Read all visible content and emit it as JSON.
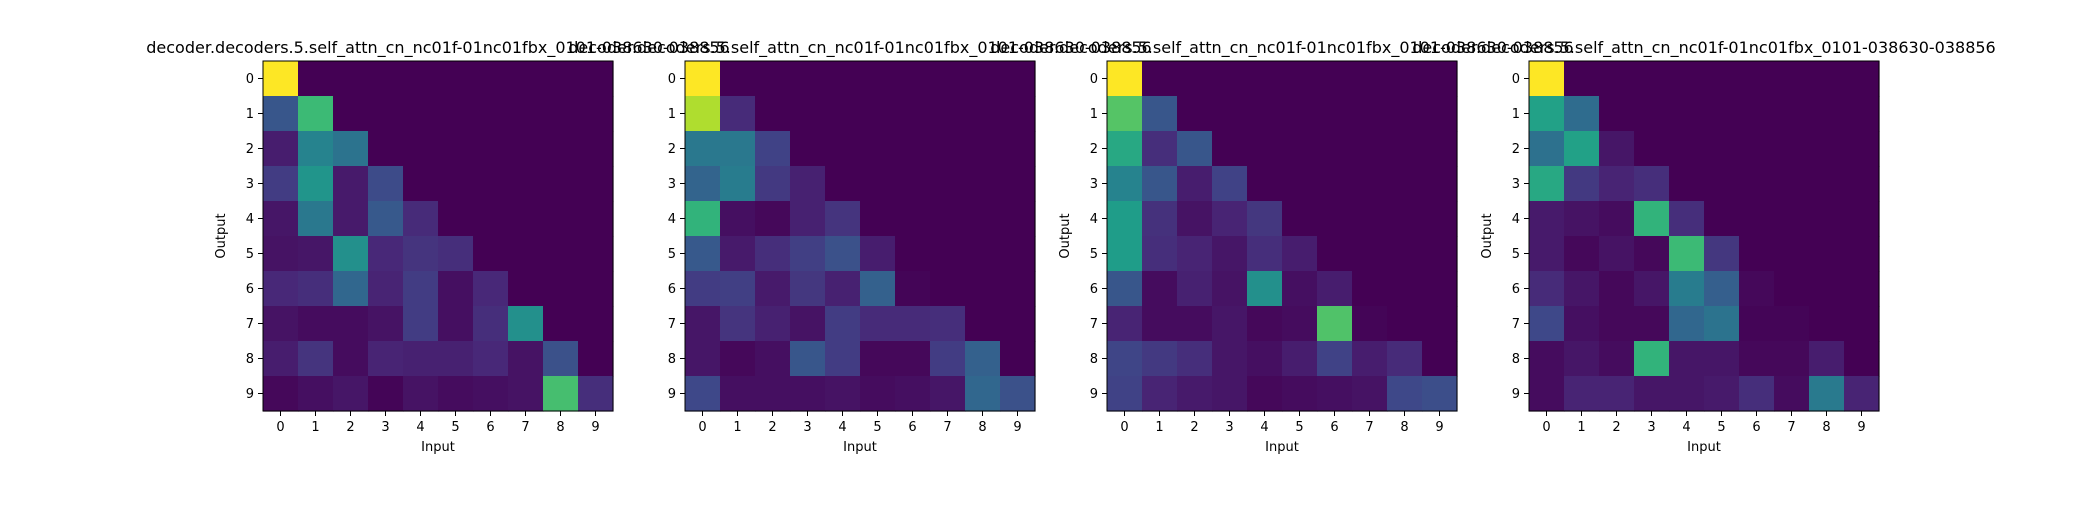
{
  "chart_data": [
    {
      "type": "heatmap",
      "title": "decoder.decoders.5.self_attn_cn_nc01f-01nc01fbx_0101-038630-038856",
      "xlabel": "Input",
      "ylabel": "Output",
      "x_ticks": [
        "0",
        "1",
        "2",
        "3",
        "4",
        "5",
        "6",
        "7",
        "8",
        "9"
      ],
      "y_ticks": [
        "0",
        "1",
        "2",
        "3",
        "4",
        "5",
        "6",
        "7",
        "8",
        "9"
      ],
      "colormap": "viridis",
      "values": [
        [
          1.0,
          0,
          0,
          0,
          0,
          0,
          0,
          0,
          0,
          0
        ],
        [
          0.27,
          0.68,
          0,
          0,
          0,
          0,
          0,
          0,
          0,
          0
        ],
        [
          0.08,
          0.45,
          0.38,
          0,
          0,
          0,
          0,
          0,
          0,
          0
        ],
        [
          0.18,
          0.52,
          0.07,
          0.23,
          0,
          0,
          0,
          0,
          0,
          0
        ],
        [
          0.06,
          0.4,
          0.07,
          0.28,
          0.12,
          0,
          0,
          0,
          0,
          0
        ],
        [
          0.05,
          0.06,
          0.5,
          0.11,
          0.15,
          0.13,
          0,
          0,
          0,
          0
        ],
        [
          0.11,
          0.13,
          0.33,
          0.1,
          0.18,
          0.04,
          0.11,
          0,
          0,
          0
        ],
        [
          0.05,
          0.03,
          0.03,
          0.05,
          0.18,
          0.04,
          0.13,
          0.5,
          0,
          0
        ],
        [
          0.08,
          0.15,
          0.03,
          0.1,
          0.09,
          0.09,
          0.11,
          0.05,
          0.25,
          0
        ],
        [
          0.02,
          0.04,
          0.06,
          0.01,
          0.05,
          0.03,
          0.04,
          0.05,
          0.7,
          0.13
        ]
      ]
    },
    {
      "type": "heatmap",
      "title": "decoder.decoders.5.self_attn_cn_nc01f-01nc01fbx_0101-038630-038856",
      "xlabel": "Input",
      "ylabel": "",
      "x_ticks": [
        "0",
        "1",
        "2",
        "3",
        "4",
        "5",
        "6",
        "7",
        "8",
        "9"
      ],
      "y_ticks": [
        "0",
        "1",
        "2",
        "3",
        "4",
        "5",
        "6",
        "7",
        "8",
        "9"
      ],
      "colormap": "viridis",
      "values": [
        [
          1.0,
          0,
          0,
          0,
          0,
          0,
          0,
          0,
          0,
          0
        ],
        [
          0.88,
          0.12,
          0,
          0,
          0,
          0,
          0,
          0,
          0,
          0
        ],
        [
          0.4,
          0.4,
          0.2,
          0,
          0,
          0,
          0,
          0,
          0,
          0
        ],
        [
          0.32,
          0.42,
          0.17,
          0.09,
          0,
          0,
          0,
          0,
          0,
          0
        ],
        [
          0.65,
          0.04,
          0.02,
          0.09,
          0.15,
          0,
          0,
          0,
          0,
          0
        ],
        [
          0.28,
          0.07,
          0.13,
          0.19,
          0.25,
          0.08,
          0,
          0,
          0,
          0
        ],
        [
          0.18,
          0.19,
          0.07,
          0.16,
          0.09,
          0.31,
          0.01,
          0,
          0,
          0
        ],
        [
          0.06,
          0.15,
          0.09,
          0.05,
          0.18,
          0.12,
          0.12,
          0.13,
          0,
          0
        ],
        [
          0.06,
          0.02,
          0.04,
          0.27,
          0.18,
          0.02,
          0.02,
          0.18,
          0.31,
          0
        ],
        [
          0.22,
          0.04,
          0.04,
          0.04,
          0.05,
          0.03,
          0.04,
          0.06,
          0.33,
          0.25
        ]
      ]
    },
    {
      "type": "heatmap",
      "title": "decoder.decoders.5.self_attn_cn_nc01f-01nc01fbx_0101-038630-038856",
      "xlabel": "Input",
      "ylabel": "Output",
      "x_ticks": [
        "0",
        "1",
        "2",
        "3",
        "4",
        "5",
        "6",
        "7",
        "8",
        "9"
      ],
      "y_ticks": [
        "0",
        "1",
        "2",
        "3",
        "4",
        "5",
        "6",
        "7",
        "8",
        "9"
      ],
      "colormap": "viridis",
      "values": [
        [
          1.0,
          0,
          0,
          0,
          0,
          0,
          0,
          0,
          0,
          0
        ],
        [
          0.73,
          0.27,
          0,
          0,
          0,
          0,
          0,
          0,
          0,
          0
        ],
        [
          0.6,
          0.13,
          0.27,
          0,
          0,
          0,
          0,
          0,
          0,
          0
        ],
        [
          0.45,
          0.27,
          0.08,
          0.2,
          0,
          0,
          0,
          0,
          0,
          0
        ],
        [
          0.55,
          0.14,
          0.05,
          0.1,
          0.16,
          0,
          0,
          0,
          0,
          0
        ],
        [
          0.55,
          0.13,
          0.1,
          0.06,
          0.13,
          0.08,
          0,
          0,
          0,
          0
        ],
        [
          0.27,
          0.03,
          0.09,
          0.05,
          0.5,
          0.04,
          0.08,
          0,
          0,
          0
        ],
        [
          0.1,
          0.03,
          0.03,
          0.06,
          0.02,
          0.03,
          0.72,
          0.01,
          0,
          0
        ],
        [
          0.21,
          0.17,
          0.13,
          0.06,
          0.04,
          0.08,
          0.2,
          0.08,
          0.12,
          0
        ],
        [
          0.2,
          0.1,
          0.07,
          0.06,
          0.02,
          0.03,
          0.04,
          0.05,
          0.22,
          0.24
        ]
      ]
    },
    {
      "type": "heatmap",
      "title": "decoder.decoders.5.self_attn_cn_nc01f-01nc01fbx_0101-038630-038856",
      "xlabel": "Input",
      "ylabel": "Output",
      "x_ticks": [
        "0",
        "1",
        "2",
        "3",
        "4",
        "5",
        "6",
        "7",
        "8",
        "9"
      ],
      "y_ticks": [
        "0",
        "1",
        "2",
        "3",
        "4",
        "5",
        "6",
        "7",
        "8",
        "9"
      ],
      "colormap": "viridis",
      "values": [
        [
          1.0,
          0,
          0,
          0,
          0,
          0,
          0,
          0,
          0,
          0
        ],
        [
          0.57,
          0.35,
          0,
          0,
          0,
          0,
          0,
          0,
          0,
          0
        ],
        [
          0.37,
          0.57,
          0.06,
          0,
          0,
          0,
          0,
          0,
          0,
          0
        ],
        [
          0.6,
          0.17,
          0.1,
          0.13,
          0,
          0,
          0,
          0,
          0,
          0
        ],
        [
          0.07,
          0.05,
          0.03,
          0.65,
          0.13,
          0,
          0,
          0,
          0,
          0
        ],
        [
          0.07,
          0.02,
          0.05,
          0.02,
          0.68,
          0.16,
          0,
          0,
          0,
          0
        ],
        [
          0.12,
          0.06,
          0.02,
          0.06,
          0.42,
          0.3,
          0.02,
          0,
          0,
          0
        ],
        [
          0.22,
          0.04,
          0.02,
          0.02,
          0.33,
          0.38,
          0.01,
          0.01,
          0,
          0
        ],
        [
          0.03,
          0.06,
          0.03,
          0.65,
          0.06,
          0.06,
          0.02,
          0.02,
          0.08,
          0
        ],
        [
          0.03,
          0.1,
          0.1,
          0.06,
          0.06,
          0.07,
          0.13,
          0.03,
          0.41,
          0.1
        ]
      ]
    }
  ]
}
